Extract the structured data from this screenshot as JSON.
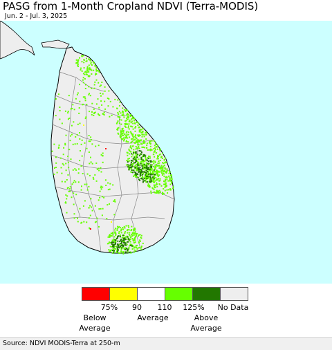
{
  "title": "PASG from 1-Month Cropland NDVI (Terra-MODIS)",
  "subtitle": "Jun. 2 - Jul. 3, 2025",
  "map": {
    "region": "Sri Lanka",
    "colors": {
      "sea": "#ccffff",
      "land": "#eeeeee",
      "border": "#888888",
      "coast": "#000000"
    }
  },
  "legend": {
    "colors": [
      "#ff0000",
      "#ffff00",
      "#ffffff",
      "#66ff00",
      "#227700",
      "#eeeeee"
    ],
    "ticks": [
      "75%",
      "90",
      "110",
      "125%",
      "No Data"
    ],
    "categories": {
      "below": "Below\nAverage",
      "average": "Average",
      "above": "Above\nAverage"
    }
  },
  "footer": {
    "source": "Source: NDVI MODIS-Terra at 250-m"
  }
}
